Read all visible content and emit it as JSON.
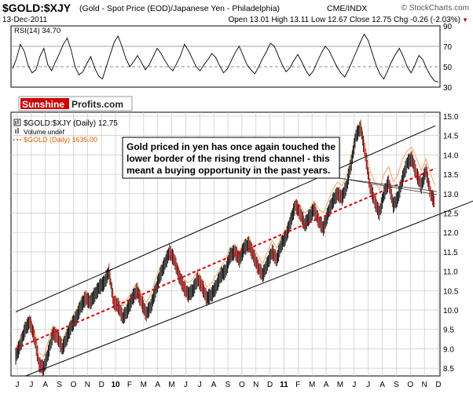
{
  "header": {
    "symbol": "$GOLD:$XJY",
    "description": "(Gold - Spot Price (EOD)/Japanese Yen - Philadelphia)",
    "exchange": "CME/INDX",
    "credit": "© StockCharts.com",
    "date": "13-Dec-2011",
    "ohlc": "Open 13.01  High 13.11  Low 12.67  Close 12.75  Chg -0.26 (-2.03%)",
    "chg_marker": "▼"
  },
  "branding": {
    "part1": "Sunshine",
    "part2": "Profits.com"
  },
  "annotation": {
    "lines": [
      "Gold priced in yen has once again touched the",
      "lower border of the rising trend channel - this",
      "meant a buying opportunity in the past years."
    ]
  },
  "colors": {
    "price": "#000000",
    "price_down": "#cc0000",
    "gold_overlay": "#f4b27a",
    "trendline": "#e00000",
    "grid": "#c8c8c8",
    "brand_red": "#cc0000"
  },
  "chart_data": [
    {
      "type": "line",
      "title": "RSI(14) 34.70",
      "ylim": [
        30,
        90
      ],
      "overbought": 70,
      "oversold": 30,
      "midline": 50,
      "yticks": [
        "90",
        "70",
        "50",
        "30"
      ],
      "values": [
        48,
        58,
        72,
        65,
        51,
        44,
        47,
        60,
        68,
        52,
        46,
        55,
        63,
        72,
        78,
        66,
        50,
        42,
        45,
        53,
        60,
        49,
        41,
        38,
        50,
        62,
        74,
        80,
        70,
        58,
        50,
        55,
        61,
        54,
        47,
        52,
        60,
        68,
        63,
        56,
        50,
        46,
        53,
        61,
        72,
        66,
        58,
        50,
        46,
        52,
        57,
        63,
        59,
        51,
        44,
        48,
        56,
        64,
        70,
        61,
        52,
        47,
        43,
        50,
        58,
        65,
        73,
        70,
        61,
        52,
        45,
        49,
        56,
        62,
        55,
        47,
        41,
        46,
        55,
        63,
        70,
        66,
        58,
        50,
        44,
        40,
        47,
        56,
        65,
        74,
        82,
        76,
        64,
        52,
        43,
        38,
        46,
        55,
        62,
        68,
        60,
        50,
        44,
        52,
        61,
        57,
        48,
        41,
        36,
        35
      ]
    },
    {
      "type": "line",
      "title": "$GOLD:$XJY (Daily) 12.75",
      "legend": [
        "$GOLD:$XJY (Daily) 12.75",
        "Volume undef",
        "$GOLD (Daily) 1635.00"
      ],
      "legend_placement": "top-left",
      "ylim": [
        8.3,
        15.1
      ],
      "ytick_labels": [
        "15.0",
        "14.5",
        "14.0",
        "13.5",
        "13.0",
        "12.5",
        "12.0",
        "11.5",
        "11.0",
        "10.5",
        "10.0",
        "9.5",
        "9.0",
        "8.5"
      ],
      "x_labels": [
        "J",
        "J",
        "A",
        "S",
        "O",
        "N",
        "D",
        "10",
        "F",
        "M",
        "A",
        "M",
        "J",
        "J",
        "A",
        "S",
        "O",
        "N",
        "D",
        "11",
        "F",
        "M",
        "A",
        "M",
        "J",
        "J",
        "A",
        "S",
        "O",
        "N",
        "D"
      ],
      "series": [
        {
          "name": "$GOLD:$XJY (Daily) 12.75",
          "style": "price",
          "values": [
            8.8,
            9.1,
            9.5,
            9.7,
            9.3,
            8.6,
            8.5,
            8.9,
            9.4,
            9.3,
            9.0,
            9.3,
            9.6,
            9.8,
            10.1,
            10.3,
            10.2,
            10.4,
            10.6,
            10.7,
            11.0,
            10.2,
            10.1,
            9.8,
            10.0,
            10.3,
            10.5,
            10.2,
            9.9,
            10.1,
            10.5,
            10.9,
            11.2,
            11.5,
            11.3,
            10.9,
            10.6,
            10.4,
            10.5,
            10.8,
            10.6,
            10.3,
            10.4,
            10.6,
            10.9,
            11.0,
            11.4,
            11.5,
            11.3,
            11.6,
            11.7,
            11.4,
            11.1,
            10.9,
            11.2,
            11.5,
            11.3,
            11.7,
            11.9,
            12.3,
            12.7,
            12.5,
            12.2,
            12.4,
            12.6,
            12.3,
            12.1,
            12.5,
            12.8,
            13.0,
            12.9,
            13.2,
            13.8,
            14.5,
            14.7,
            14.0,
            13.2,
            12.8,
            12.5,
            13.0,
            13.3,
            12.7,
            12.9,
            13.4,
            13.8,
            13.9,
            13.5,
            13.2,
            13.6,
            13.0,
            12.75
          ]
        },
        {
          "name": "$GOLD (Daily) 1635.00",
          "style": "overlay",
          "values": [
            9.0,
            9.3,
            9.6,
            9.8,
            9.5,
            8.9,
            8.8,
            9.2,
            9.6,
            9.5,
            9.2,
            9.5,
            9.8,
            10.0,
            10.3,
            10.5,
            10.3,
            10.5,
            10.7,
            10.8,
            10.9,
            10.4,
            10.3,
            10.1,
            10.3,
            10.5,
            10.7,
            10.4,
            10.2,
            10.4,
            10.8,
            11.1,
            11.3,
            11.4,
            11.2,
            11.0,
            10.8,
            10.7,
            10.8,
            11.0,
            10.8,
            10.6,
            10.7,
            10.9,
            11.1,
            11.3,
            11.6,
            11.7,
            11.5,
            11.8,
            11.9,
            11.6,
            11.4,
            11.2,
            11.5,
            11.8,
            11.6,
            11.9,
            12.1,
            12.4,
            12.8,
            12.7,
            12.5,
            12.6,
            12.8,
            12.6,
            12.5,
            12.8,
            13.1,
            13.3,
            13.2,
            13.5,
            14.0,
            14.6,
            14.8,
            14.2,
            13.6,
            13.3,
            13.1,
            13.5,
            13.7,
            13.3,
            13.5,
            13.9,
            14.1,
            14.2,
            13.9,
            13.6,
            13.9,
            13.5,
            13.2
          ]
        }
      ],
      "channel": {
        "upper": [
          [
            0,
            9.95
          ],
          [
            90,
            14.75
          ]
        ],
        "lower": [
          [
            0,
            8.2
          ],
          [
            100,
            12.9
          ]
        ],
        "midline": [
          [
            0,
            9.0
          ],
          [
            90,
            13.65
          ]
        ]
      }
    }
  ]
}
